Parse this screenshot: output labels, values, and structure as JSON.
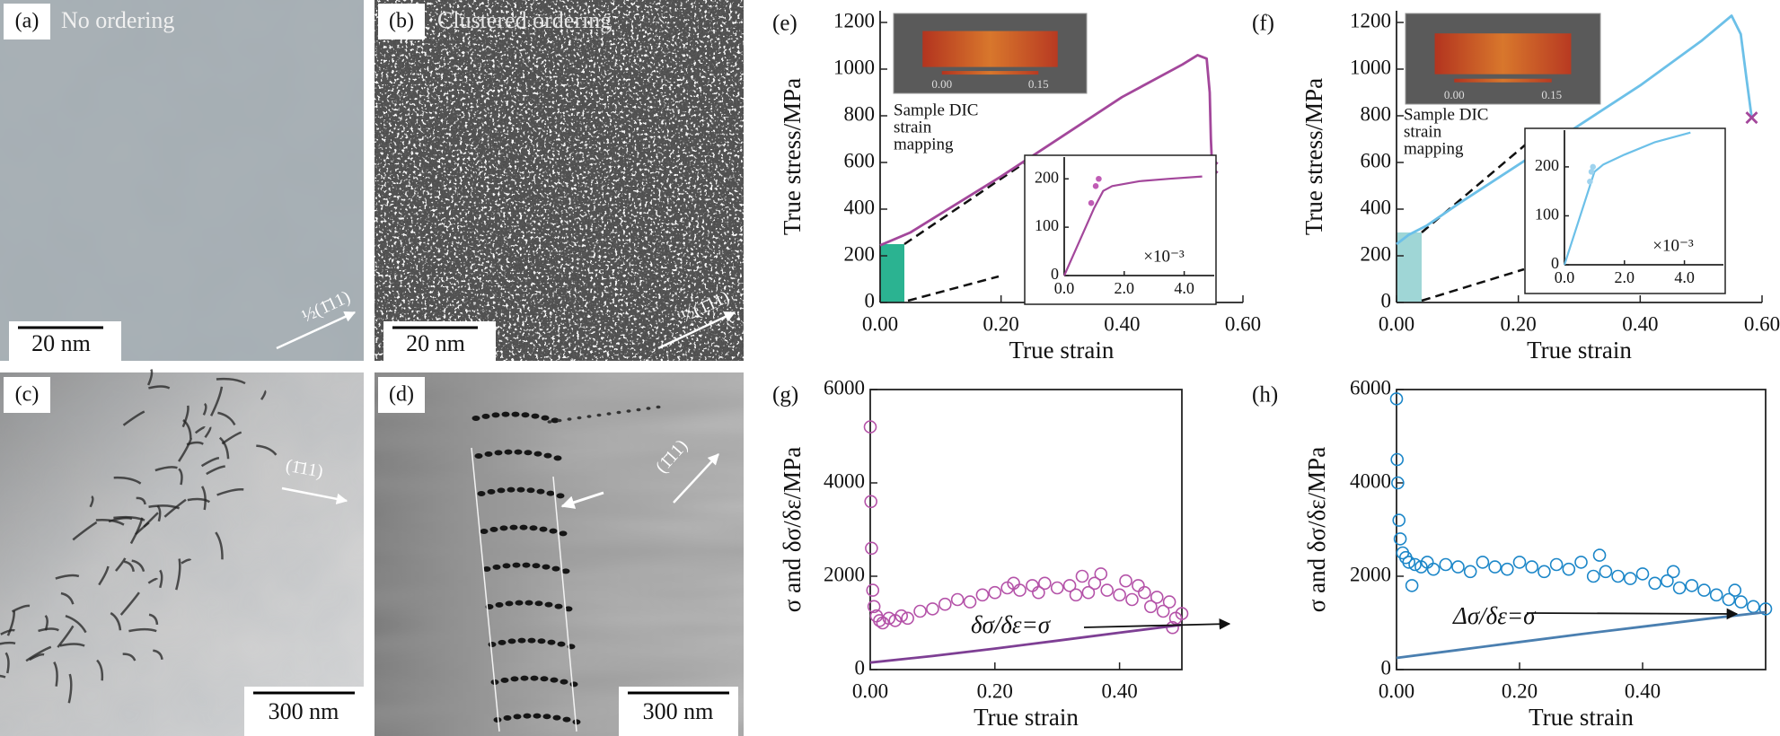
{
  "panels": [
    {
      "label": "(a)",
      "caption": "No ordering",
      "scale_bar": "20 nm",
      "direction": "½(1̄11)"
    },
    {
      "label": "(b)",
      "caption": "Clustered ordering",
      "scale_bar": "20 nm",
      "direction": "½(1̄11)"
    },
    {
      "label": "(c)",
      "scale_bar": "300 nm",
      "direction": "(1̄11)"
    },
    {
      "label": "(d)",
      "scale_bar": "300 nm",
      "direction": "(1̄11)"
    }
  ],
  "chart_data": [
    {
      "type": "line",
      "panel_label": "(e)",
      "xlabel": "True strain",
      "ylabel": "True stress/MPa",
      "xlim": [
        0,
        0.6
      ],
      "ylim": [
        0,
        1250
      ],
      "xticks": [
        {
          "value": 0,
          "label": "0.00"
        },
        {
          "value": 0.2,
          "label": "0.20"
        },
        {
          "value": 0.4,
          "label": "0.40"
        },
        {
          "value": 0.6,
          "label": "0.60"
        }
      ],
      "yticks": [
        0,
        200,
        400,
        600,
        800,
        1000,
        1200
      ],
      "series": [
        {
          "color": "#a3479b",
          "end_marker": "x",
          "x": [
            0,
            0.05,
            0.1,
            0.2,
            0.3,
            0.4,
            0.5,
            0.525,
            0.54,
            0.545,
            0.547,
            0.549
          ],
          "values": [
            245,
            300,
            380,
            540,
            710,
            880,
            1020,
            1060,
            1045,
            900,
            700,
            578
          ]
        }
      ],
      "annotation": [
        "Sample DIC",
        "strain",
        "mapping"
      ],
      "inset_image_labels": [
        "0.00",
        "0.15"
      ]
    },
    {
      "type": "line",
      "xlim": [
        0,
        5
      ],
      "ylim": [
        0,
        245
      ],
      "xticks": [
        {
          "value": 0,
          "label": "0.0"
        },
        {
          "value": 2,
          "label": "2.0"
        },
        {
          "value": 4,
          "label": "4.0"
        }
      ],
      "yticks": [
        0,
        100,
        200
      ],
      "x_multiplier": "×10⁻³",
      "series": [
        {
          "color": "#a3479b",
          "x": [
            0,
            0.5,
            1.0,
            1.3,
            1.6,
            2.5,
            3.5,
            4.6
          ],
          "values": [
            0,
            70,
            140,
            175,
            185,
            195,
            200,
            205
          ]
        },
        {
          "color": "#c05cb5",
          "style": "points",
          "x": [
            0.9,
            1.05,
            1.15
          ],
          "values": [
            150,
            185,
            200
          ]
        }
      ]
    },
    {
      "type": "line",
      "panel_label": "(f)",
      "xlabel": "True strain",
      "ylabel": "True stress/MPa",
      "xlim": [
        0,
        0.6
      ],
      "ylim": [
        0,
        1250
      ],
      "xticks": [
        {
          "value": 0,
          "label": "0.00"
        },
        {
          "value": 0.2,
          "label": "0.20"
        },
        {
          "value": 0.4,
          "label": "0.40"
        },
        {
          "value": 0.6,
          "label": "0.60"
        }
      ],
      "yticks": [
        0,
        200,
        400,
        600,
        800,
        1000,
        1200
      ],
      "series": [
        {
          "color": "#6cc0e8",
          "end_marker": "x",
          "marker_color": "#a3479b",
          "x": [
            0,
            0.02,
            0.05,
            0.1,
            0.2,
            0.3,
            0.4,
            0.5,
            0.55,
            0.565,
            0.575,
            0.583
          ],
          "values": [
            250,
            290,
            330,
            420,
            590,
            760,
            930,
            1120,
            1229,
            1150,
            950,
            792
          ]
        }
      ],
      "annotation": [
        "Sample DIC",
        "strain",
        "mapping"
      ],
      "inset_image_labels": [
        "0.00",
        "0.15"
      ]
    },
    {
      "type": "line",
      "xlim": [
        0,
        5.3
      ],
      "ylim": [
        0,
        275
      ],
      "xticks": [
        {
          "value": 0,
          "label": "0.0"
        },
        {
          "value": 2,
          "label": "2.0"
        },
        {
          "value": 4,
          "label": "4.0"
        }
      ],
      "yticks": [
        0,
        100,
        200
      ],
      "x_multiplier": "×10⁻³",
      "series": [
        {
          "color": "#6cc0e8",
          "x": [
            0,
            0.5,
            1.0,
            1.3,
            2.0,
            3.0,
            4.2
          ],
          "values": [
            0,
            95,
            190,
            205,
            225,
            250,
            270
          ]
        },
        {
          "color": "#9fd3ee",
          "style": "points",
          "x": [
            0.85,
            0.9,
            0.95
          ],
          "values": [
            170,
            190,
            200
          ]
        }
      ]
    },
    {
      "type": "scatter",
      "panel_label": "(g)",
      "xlabel": "True strain",
      "ylabel": "σ and δσ/δε/MPa",
      "frame": true,
      "xlim": [
        0,
        0.5
      ],
      "ylim": [
        0,
        6000
      ],
      "xticks": [
        {
          "value": 0,
          "label": "0.00"
        },
        {
          "value": 0.2,
          "label": "0.20"
        },
        {
          "value": 0.4,
          "label": "0.40"
        }
      ],
      "yticks": [
        0,
        2000,
        4000,
        6000
      ],
      "series": [
        {
          "color": "#b452a8",
          "x": [
            0,
            0.001,
            0.002,
            0.004,
            0.006,
            0.01,
            0.015,
            0.02,
            0.03,
            0.04,
            0.05,
            0.06,
            0.08,
            0.1,
            0.12,
            0.14,
            0.16,
            0.18,
            0.2,
            0.22,
            0.23,
            0.24,
            0.26,
            0.27,
            0.28,
            0.3,
            0.32,
            0.33,
            0.34,
            0.35,
            0.36,
            0.37,
            0.38,
            0.4,
            0.41,
            0.42,
            0.43,
            0.44,
            0.45,
            0.46,
            0.47,
            0.48,
            0.485,
            0.49,
            0.5
          ],
          "values": [
            5200,
            3600,
            2600,
            1700,
            1350,
            1150,
            1050,
            1000,
            1100,
            1050,
            1150,
            1100,
            1250,
            1300,
            1400,
            1500,
            1450,
            1600,
            1650,
            1750,
            1850,
            1700,
            1800,
            1650,
            1850,
            1750,
            1800,
            1600,
            2000,
            1650,
            1850,
            2050,
            1700,
            1600,
            1900,
            1500,
            1800,
            1650,
            1350,
            1550,
            1250,
            1450,
            900,
            1100,
            1200
          ]
        },
        {
          "color": "#7e3f94",
          "style": "line",
          "x": [
            0,
            0.1,
            0.2,
            0.3,
            0.4,
            0.5
          ],
          "values": [
            150,
            290,
            450,
            620,
            790,
            960
          ]
        }
      ],
      "annotation": "δσ/δε=σ"
    },
    {
      "type": "scatter",
      "panel_label": "(h)",
      "xlabel": "True strain",
      "ylabel": "σ and δσ/δε/MPa",
      "frame": true,
      "xlim": [
        0,
        0.6
      ],
      "ylim": [
        0,
        6000
      ],
      "xticks": [
        {
          "value": 0,
          "label": "0.00"
        },
        {
          "value": 0.2,
          "label": "0.20"
        },
        {
          "value": 0.4,
          "label": "0.40"
        }
      ],
      "yticks": [
        0,
        2000,
        4000,
        6000
      ],
      "series": [
        {
          "color": "#1b86c8",
          "x": [
            0,
            0.001,
            0.002,
            0.004,
            0.006,
            0.01,
            0.015,
            0.02,
            0.025,
            0.03,
            0.04,
            0.05,
            0.06,
            0.08,
            0.1,
            0.12,
            0.14,
            0.16,
            0.18,
            0.2,
            0.22,
            0.24,
            0.26,
            0.28,
            0.3,
            0.32,
            0.33,
            0.34,
            0.36,
            0.38,
            0.4,
            0.42,
            0.44,
            0.45,
            0.46,
            0.48,
            0.5,
            0.52,
            0.54,
            0.55,
            0.56,
            0.58,
            0.6
          ],
          "values": [
            5800,
            4500,
            4000,
            3200,
            2800,
            2500,
            2400,
            2300,
            1800,
            2250,
            2200,
            2300,
            2150,
            2250,
            2200,
            2100,
            2300,
            2200,
            2150,
            2300,
            2200,
            2100,
            2250,
            2150,
            2300,
            2000,
            2450,
            2100,
            2000,
            1950,
            2050,
            1850,
            1900,
            2100,
            1750,
            1800,
            1700,
            1600,
            1500,
            1700,
            1450,
            1350,
            1300
          ]
        },
        {
          "color": "#4a7fb0",
          "style": "line",
          "x": [
            0,
            0.1,
            0.2,
            0.3,
            0.4,
            0.5,
            0.6
          ],
          "values": [
            250,
            420,
            590,
            760,
            920,
            1080,
            1230
          ]
        }
      ],
      "annotation": "Δσ/δε=σ"
    }
  ]
}
